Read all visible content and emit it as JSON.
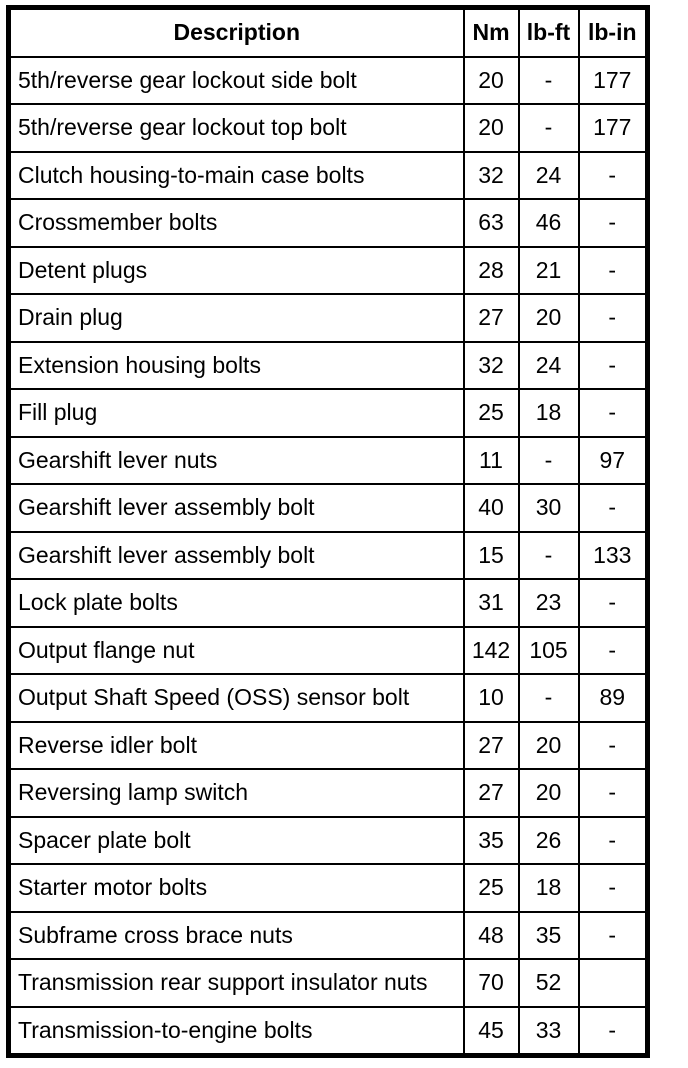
{
  "table": {
    "columns": [
      "Description",
      "Nm",
      "lb-ft",
      "lb-in"
    ],
    "rows": [
      [
        "5th/reverse gear lockout side bolt",
        "20",
        "-",
        "177"
      ],
      [
        "5th/reverse gear lockout top bolt",
        "20",
        "-",
        "177"
      ],
      [
        "Clutch housing-to-main case bolts",
        "32",
        "24",
        "-"
      ],
      [
        "Crossmember bolts",
        "63",
        "46",
        "-"
      ],
      [
        "Detent plugs",
        "28",
        "21",
        "-"
      ],
      [
        "Drain plug",
        "27",
        "20",
        "-"
      ],
      [
        "Extension housing bolts",
        "32",
        "24",
        "-"
      ],
      [
        "Fill plug",
        "25",
        "18",
        "-"
      ],
      [
        "Gearshift lever nuts",
        "11",
        "-",
        "97"
      ],
      [
        "Gearshift lever assembly bolt",
        "40",
        "30",
        "-"
      ],
      [
        "Gearshift lever assembly bolt",
        "15",
        "-",
        "133"
      ],
      [
        "Lock plate bolts",
        "31",
        "23",
        "-"
      ],
      [
        "Output flange nut",
        "142",
        "105",
        "-"
      ],
      [
        "Output Shaft Speed (OSS) sensor bolt",
        "10",
        "-",
        "89"
      ],
      [
        "Reverse idler bolt",
        "27",
        "20",
        "-"
      ],
      [
        "Reversing lamp switch",
        "27",
        "20",
        "-"
      ],
      [
        "Spacer plate bolt",
        "35",
        "26",
        "-"
      ],
      [
        "Starter motor bolts",
        "25",
        "18",
        "-"
      ],
      [
        "Subframe cross brace nuts",
        "48",
        "35",
        "-"
      ],
      [
        "Transmission rear support insulator nuts",
        "70",
        "52",
        ""
      ],
      [
        "Transmission-to-engine bolts",
        "45",
        "33",
        "-"
      ]
    ],
    "colors": {
      "border": "#000000",
      "background": "#ffffff",
      "text": "#000000"
    }
  }
}
